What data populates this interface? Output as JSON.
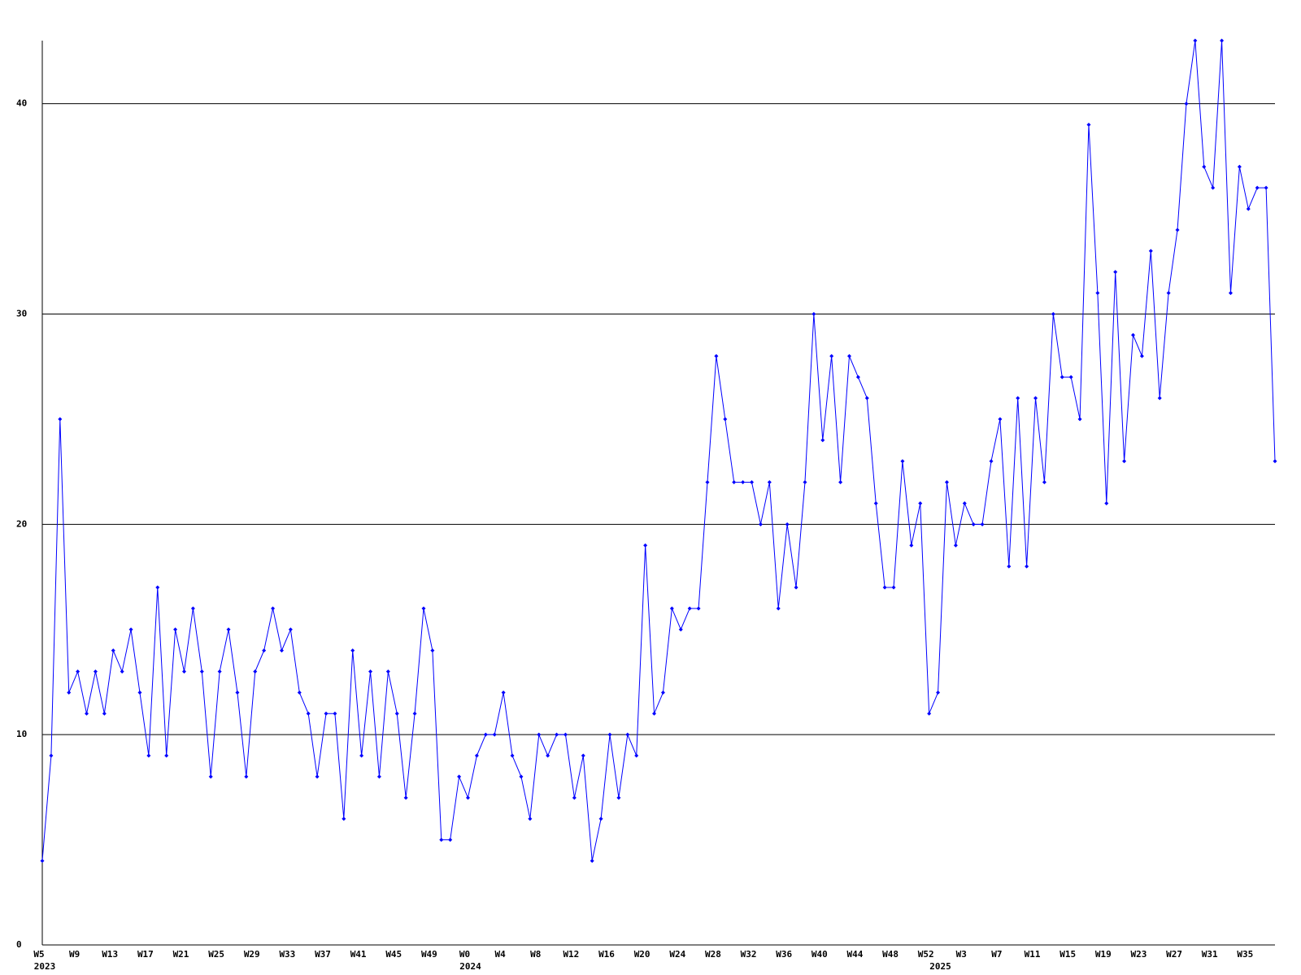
{
  "chart_data": {
    "type": "line",
    "categories": [
      "W5",
      null,
      null,
      null,
      "W9",
      null,
      null,
      null,
      "W13",
      null,
      null,
      null,
      "W17",
      null,
      null,
      null,
      "W21",
      null,
      null,
      null,
      "W25",
      null,
      null,
      null,
      "W29",
      null,
      null,
      null,
      "W33",
      null,
      null,
      null,
      "W37",
      null,
      null,
      null,
      "W41",
      null,
      null,
      null,
      "W45",
      null,
      null,
      null,
      "W49",
      null,
      null,
      null,
      "W0",
      null,
      null,
      null,
      "W4",
      null,
      null,
      null,
      "W8",
      null,
      null,
      null,
      "W12",
      null,
      null,
      null,
      "W16",
      null,
      null,
      null,
      "W20",
      null,
      null,
      null,
      "W24",
      null,
      null,
      null,
      "W28",
      null,
      null,
      null,
      "W32",
      null,
      null,
      null,
      "W36",
      null,
      null,
      null,
      "W40",
      null,
      null,
      null,
      "W44",
      null,
      null,
      null,
      "W48",
      null,
      null,
      null,
      "W52",
      null,
      null,
      null,
      "W3",
      null,
      null,
      null,
      "W7",
      null,
      null,
      null,
      "W11",
      null,
      null,
      null,
      "W15",
      null,
      null,
      null,
      "W19",
      null,
      null,
      null,
      "W23",
      null,
      null,
      null,
      "W27",
      null,
      null,
      null,
      "W31",
      null,
      null,
      null,
      "W35",
      null,
      null,
      null
    ],
    "category_years": [
      "2023",
      null,
      null,
      null,
      null,
      null,
      null,
      null,
      null,
      null,
      null,
      null,
      null,
      null,
      null,
      null,
      null,
      null,
      null,
      null,
      null,
      null,
      null,
      null,
      null,
      null,
      null,
      null,
      null,
      null,
      null,
      null,
      null,
      null,
      null,
      null,
      null,
      null,
      null,
      null,
      null,
      null,
      null,
      null,
      null,
      null,
      null,
      null,
      "2024",
      null,
      null,
      null,
      null,
      null,
      null,
      null,
      null,
      null,
      null,
      null,
      null,
      null,
      null,
      null,
      null,
      null,
      null,
      null,
      null,
      null,
      null,
      null,
      null,
      null,
      null,
      null,
      null,
      null,
      null,
      null,
      null,
      null,
      null,
      null,
      null,
      null,
      null,
      null,
      null,
      null,
      null,
      null,
      null,
      null,
      null,
      null,
      null,
      null,
      null,
      null,
      null,
      "2025",
      null,
      null,
      null,
      null,
      null,
      null,
      null,
      null,
      null,
      null,
      null,
      null,
      null,
      null,
      null,
      null,
      null,
      null,
      null,
      null,
      null,
      null,
      null,
      null,
      null,
      null,
      null,
      null,
      null,
      null,
      null,
      null,
      null,
      null,
      null,
      null,
      null,
      null
    ],
    "values": [
      4,
      9,
      25,
      12,
      13,
      11,
      13,
      11,
      14,
      13,
      15,
      12,
      9,
      17,
      9,
      15,
      13,
      16,
      13,
      8,
      13,
      15,
      12,
      8,
      13,
      14,
      16,
      14,
      15,
      12,
      11,
      8,
      11,
      11,
      6,
      14,
      9,
      13,
      8,
      13,
      11,
      7,
      11,
      16,
      14,
      5,
      5,
      8,
      7,
      9,
      10,
      10,
      12,
      9,
      8,
      6,
      10,
      9,
      10,
      10,
      7,
      9,
      4,
      6,
      10,
      7,
      10,
      9,
      19,
      11,
      12,
      16,
      15,
      16,
      16,
      22,
      28,
      25,
      22,
      22,
      22,
      20,
      22,
      16,
      20,
      17,
      22,
      30,
      24,
      28,
      22,
      28,
      27,
      26,
      21,
      17,
      17,
      23,
      19,
      21,
      11,
      12,
      22,
      19,
      21,
      20,
      20,
      23,
      25,
      18,
      26,
      18,
      26,
      22,
      30,
      27,
      27,
      25,
      39,
      31,
      21,
      32,
      23,
      29,
      28,
      33,
      26,
      31,
      34,
      40,
      43,
      37,
      36,
      43,
      31,
      37,
      35,
      36,
      36,
      23
    ],
    "color": "#0000ff",
    "ylim": [
      0,
      43
    ],
    "yticks": [
      0,
      10,
      20,
      30,
      40
    ],
    "grid": true
  }
}
